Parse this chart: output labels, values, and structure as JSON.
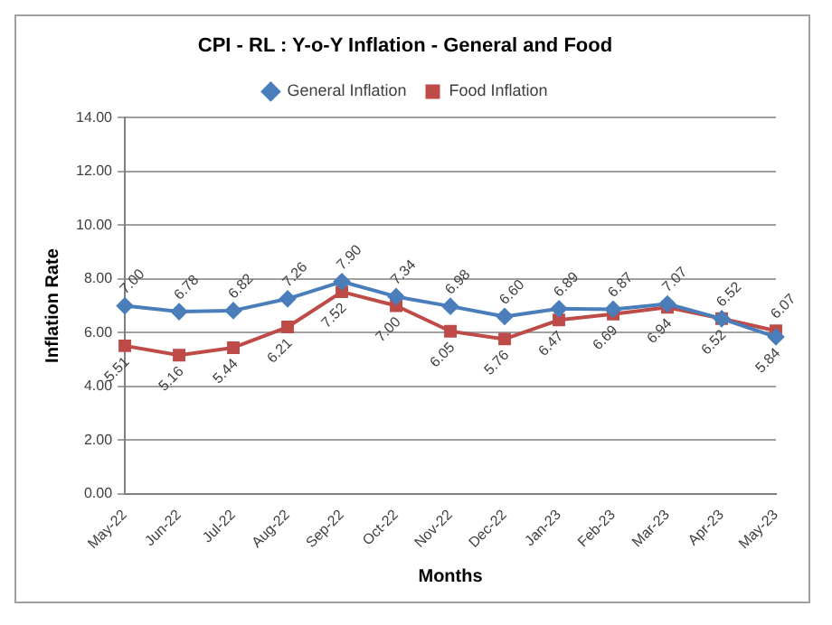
{
  "chart_data": {
    "type": "line",
    "title": "CPI - RL : Y-o-Y Inflation - General and Food",
    "xlabel": "Months",
    "ylabel": "Inflation Rate",
    "categories": [
      "May-22",
      "Jun-22",
      "Jul-22",
      "Aug-22",
      "Sep-22",
      "Oct-22",
      "Nov-22",
      "Dec-22",
      "Jan-23",
      "Feb-23",
      "Mar-23",
      "Apr-23",
      "May-23"
    ],
    "series": [
      {
        "name": "General Inflation",
        "color": "#4a7ebb",
        "marker": "diamond",
        "values": [
          7.0,
          6.78,
          6.82,
          7.26,
          7.9,
          7.34,
          6.98,
          6.6,
          6.89,
          6.87,
          7.07,
          6.52,
          5.84
        ],
        "value_labels": [
          "7.00",
          "6.78",
          "6.82",
          "7.26",
          "7.90",
          "7.34",
          "6.98",
          "6.60",
          "6.89",
          "6.87",
          "7.07",
          "6.52",
          "5.84"
        ]
      },
      {
        "name": "Food Inflation",
        "color": "#be4b48",
        "marker": "square",
        "values": [
          5.51,
          5.16,
          5.44,
          6.21,
          7.52,
          7.0,
          6.05,
          5.76,
          6.47,
          6.69,
          6.94,
          6.52,
          6.07
        ],
        "value_labels": [
          "5.51",
          "5.16",
          "5.44",
          "6.21",
          "7.52",
          "7.00",
          "6.05",
          "5.76",
          "6.47",
          "6.69",
          "6.94",
          "6.52",
          "6.07"
        ]
      }
    ],
    "ylim": [
      0,
      14
    ],
    "yticks": [
      {
        "value": 0,
        "label": "0.00"
      },
      {
        "value": 2,
        "label": "2.00"
      },
      {
        "value": 4,
        "label": "4.00"
      },
      {
        "value": 6,
        "label": "6.00"
      },
      {
        "value": 8,
        "label": "8.00"
      },
      {
        "value": 10,
        "label": "10.00"
      },
      {
        "value": 12,
        "label": "12.00"
      },
      {
        "value": 14,
        "label": "14.00"
      }
    ],
    "grid": "y",
    "legend": "top",
    "line_style": "solid"
  }
}
